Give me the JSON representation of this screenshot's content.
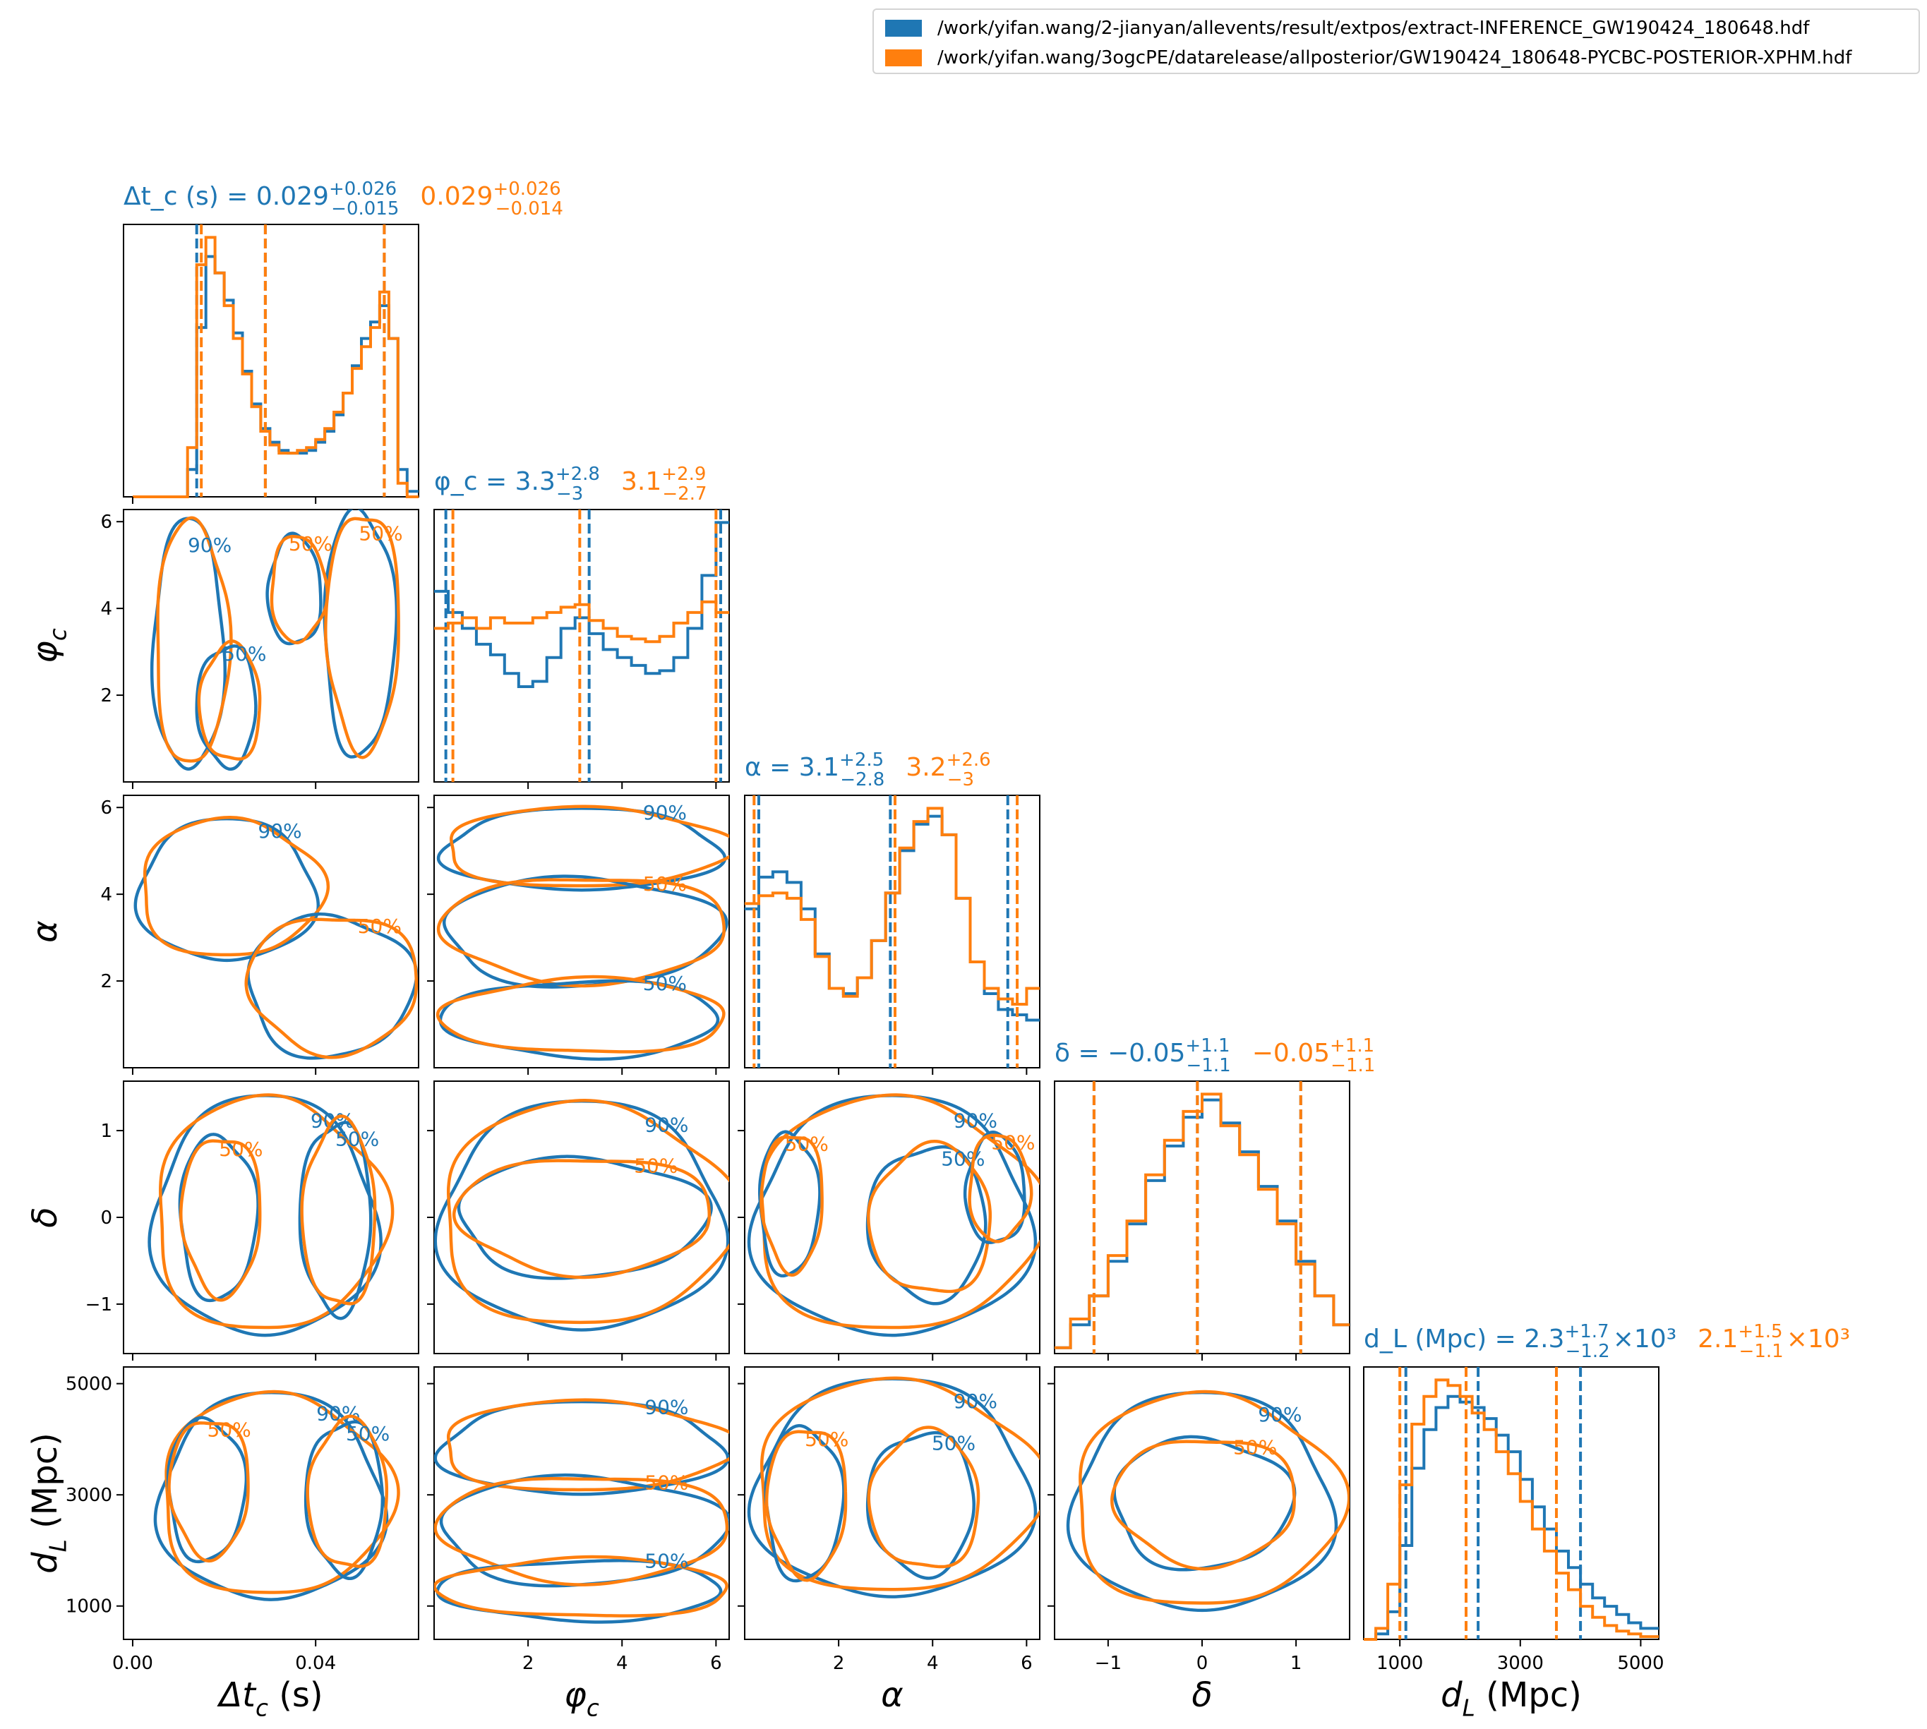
{
  "legend": {
    "entries": [
      {
        "label": "/work/yifan.wang/2-jianyan/allevents/result/extpos/extract-INFERENCE_GW190424_180648.hdf",
        "color": "#1f77b4"
      },
      {
        "label": "/work/yifan.wang/3ogcPE/datarelease/allposterior/GW190424_180648-PYCBC-POSTERIOR-XPHM.hdf",
        "color": "#ff7f0e"
      }
    ]
  },
  "colors": {
    "series_a": "#1f77b4",
    "series_b": "#ff7f0e"
  },
  "chart_data": {
    "type": "corner",
    "params": [
      {
        "key": "dtc",
        "label": "Δt_c (s)",
        "range": [
          -0.002,
          0.0625
        ],
        "ticks": [
          0.0,
          0.04
        ],
        "tick_labels": [
          "0.00",
          "0.04"
        ],
        "title_a": {
          "name": "Δt_c (s) = ",
          "median": "0.029",
          "plus": "+0.026",
          "minus": "−0.015"
        },
        "title_b": {
          "median": "0.029",
          "plus": "+0.026",
          "minus": "−0.014"
        }
      },
      {
        "key": "phic",
        "label": "φ_c",
        "range": [
          0.0,
          6.28
        ],
        "ticks": [
          2,
          4,
          6
        ],
        "tick_labels": [
          "2",
          "4",
          "6"
        ],
        "title_a": {
          "name": "φ_c = ",
          "median": "3.3",
          "plus": "+2.8",
          "minus": "−3"
        },
        "title_b": {
          "median": "3.1",
          "plus": "+2.9",
          "minus": "−2.7"
        }
      },
      {
        "key": "alpha",
        "label": "α",
        "range": [
          0.0,
          6.28
        ],
        "ticks": [
          2,
          4,
          6
        ],
        "tick_labels": [
          "2",
          "4",
          "6"
        ],
        "title_a": {
          "name": "α = ",
          "median": "3.1",
          "plus": "+2.5",
          "minus": "−2.8"
        },
        "title_b": {
          "median": "3.2",
          "plus": "+2.6",
          "minus": "−3"
        }
      },
      {
        "key": "delta",
        "label": "δ",
        "range": [
          -1.57,
          1.57
        ],
        "ticks": [
          -1,
          0,
          1
        ],
        "tick_labels": [
          "−1",
          "0",
          "1"
        ],
        "title_a": {
          "name": "δ = ",
          "median": "−0.05",
          "plus": "+1.1",
          "minus": "−1.1"
        },
        "title_b": {
          "median": "−0.05",
          "plus": "+1.1",
          "minus": "−1.1"
        }
      },
      {
        "key": "dl",
        "label": "d_L (Mpc)",
        "range": [
          400,
          5300
        ],
        "ticks": [
          1000,
          3000,
          5000
        ],
        "tick_labels": [
          "1000",
          "3000",
          "5000"
        ],
        "title_a": {
          "name": "d_L (Mpc) = ",
          "median": "2.3",
          "plus": "+1.7",
          "minus": "−1.2",
          "suffix": "×10³"
        },
        "title_b": {
          "median": "2.1",
          "plus": "+1.5",
          "minus": "−1.1",
          "suffix": "×10³"
        }
      }
    ],
    "y_ticks": {
      "phic": {
        "values": [
          2,
          4,
          6
        ],
        "labels": [
          "2",
          "4",
          "6"
        ]
      },
      "alpha": {
        "values": [
          2,
          4,
          6
        ],
        "labels": [
          "2",
          "4",
          "6"
        ]
      },
      "delta": {
        "values": [
          -1,
          0,
          1
        ],
        "labels": [
          "−1",
          "0",
          "1"
        ]
      },
      "dl": {
        "values": [
          1000,
          3000,
          5000
        ],
        "labels": [
          "1000",
          "3000",
          "5000"
        ]
      }
    },
    "marginals": {
      "dtc": {
        "a": {
          "x": [
            0.0,
            0.01,
            0.012,
            0.014,
            0.016,
            0.018,
            0.02,
            0.022,
            0.024,
            0.026,
            0.028,
            0.03,
            0.032,
            0.034,
            0.036,
            0.038,
            0.04,
            0.042,
            0.044,
            0.046,
            0.048,
            0.05,
            0.052,
            0.054,
            0.056,
            0.058,
            0.06,
            0.0625
          ],
          "y": [
            0.0,
            0.0,
            0.1,
            0.62,
            0.88,
            0.82,
            0.72,
            0.6,
            0.46,
            0.34,
            0.25,
            0.2,
            0.17,
            0.16,
            0.16,
            0.17,
            0.2,
            0.24,
            0.3,
            0.38,
            0.48,
            0.58,
            0.64,
            0.7,
            0.58,
            0.1,
            0.02,
            0.0
          ],
          "q": [
            0.014,
            0.029,
            0.055
          ]
        },
        "b": {
          "x": [
            0.0,
            0.01,
            0.012,
            0.014,
            0.016,
            0.018,
            0.02,
            0.022,
            0.024,
            0.026,
            0.028,
            0.03,
            0.032,
            0.034,
            0.036,
            0.038,
            0.04,
            0.042,
            0.044,
            0.046,
            0.048,
            0.05,
            0.052,
            0.054,
            0.056,
            0.058,
            0.06,
            0.0625
          ],
          "y": [
            0.0,
            0.0,
            0.18,
            0.85,
            0.95,
            0.82,
            0.7,
            0.58,
            0.45,
            0.33,
            0.24,
            0.19,
            0.16,
            0.16,
            0.17,
            0.18,
            0.21,
            0.25,
            0.31,
            0.38,
            0.47,
            0.55,
            0.62,
            0.75,
            0.58,
            0.05,
            0.0,
            0.0
          ],
          "q": [
            0.015,
            0.029,
            0.055
          ]
        }
      },
      "phic": {
        "a": {
          "x": [
            0.0,
            0.3,
            0.6,
            0.9,
            1.2,
            1.5,
            1.8,
            2.1,
            2.4,
            2.7,
            3.0,
            3.3,
            3.6,
            3.9,
            4.2,
            4.5,
            4.8,
            5.1,
            5.4,
            5.7,
            6.0,
            6.28
          ],
          "y": [
            0.72,
            0.64,
            0.58,
            0.52,
            0.48,
            0.41,
            0.36,
            0.38,
            0.47,
            0.58,
            0.62,
            0.56,
            0.5,
            0.47,
            0.44,
            0.41,
            0.42,
            0.47,
            0.58,
            0.78,
            0.98,
            0.85
          ],
          "q": [
            0.25,
            3.3,
            6.1
          ]
        },
        "b": {
          "x": [
            0.0,
            0.3,
            0.6,
            0.9,
            1.2,
            1.5,
            1.8,
            2.1,
            2.4,
            2.7,
            3.0,
            3.3,
            3.6,
            3.9,
            4.2,
            4.5,
            4.8,
            5.1,
            5.4,
            5.7,
            6.0,
            6.28
          ],
          "y": [
            0.58,
            0.6,
            0.62,
            0.58,
            0.62,
            0.6,
            0.6,
            0.62,
            0.64,
            0.66,
            0.67,
            0.61,
            0.58,
            0.55,
            0.54,
            0.53,
            0.55,
            0.6,
            0.64,
            0.68,
            0.64,
            0.62
          ],
          "q": [
            0.4,
            3.1,
            6.0
          ]
        }
      },
      "alpha": {
        "a": {
          "x": [
            0.0,
            0.3,
            0.6,
            0.9,
            1.2,
            1.5,
            1.8,
            2.1,
            2.4,
            2.7,
            3.0,
            3.3,
            3.6,
            3.9,
            4.2,
            4.5,
            4.8,
            5.1,
            5.4,
            5.7,
            6.0,
            6.28
          ],
          "y": [
            0.6,
            0.72,
            0.74,
            0.7,
            0.6,
            0.43,
            0.3,
            0.28,
            0.34,
            0.48,
            0.66,
            0.82,
            0.92,
            0.95,
            0.88,
            0.64,
            0.4,
            0.28,
            0.22,
            0.2,
            0.18,
            0.2
          ],
          "q": [
            0.3,
            3.1,
            5.6
          ]
        },
        "b": {
          "x": [
            0.0,
            0.3,
            0.6,
            0.9,
            1.2,
            1.5,
            1.8,
            2.1,
            2.4,
            2.7,
            3.0,
            3.3,
            3.6,
            3.9,
            4.2,
            4.5,
            4.8,
            5.1,
            5.4,
            5.7,
            6.0,
            6.28
          ],
          "y": [
            0.62,
            0.65,
            0.66,
            0.64,
            0.56,
            0.42,
            0.3,
            0.27,
            0.34,
            0.48,
            0.66,
            0.83,
            0.93,
            0.98,
            0.88,
            0.64,
            0.4,
            0.3,
            0.26,
            0.24,
            0.3,
            0.34
          ],
          "q": [
            0.2,
            3.2,
            5.8
          ]
        }
      },
      "delta": {
        "a": {
          "x": [
            -1.57,
            -1.4,
            -1.2,
            -1.0,
            -0.8,
            -0.6,
            -0.4,
            -0.2,
            0.0,
            0.2,
            0.4,
            0.6,
            0.8,
            1.0,
            1.2,
            1.4,
            1.57
          ],
          "y": [
            0.02,
            0.1,
            0.2,
            0.32,
            0.45,
            0.6,
            0.72,
            0.82,
            0.88,
            0.8,
            0.7,
            0.58,
            0.46,
            0.32,
            0.2,
            0.1,
            0.02
          ],
          "q": [
            -1.15,
            -0.05,
            1.05
          ]
        },
        "b": {
          "x": [
            -1.57,
            -1.4,
            -1.2,
            -1.0,
            -0.8,
            -0.6,
            -0.4,
            -0.2,
            0.0,
            0.2,
            0.4,
            0.6,
            0.8,
            1.0,
            1.2,
            1.4,
            1.57
          ],
          "y": [
            0.02,
            0.12,
            0.2,
            0.34,
            0.46,
            0.62,
            0.74,
            0.84,
            0.9,
            0.79,
            0.69,
            0.57,
            0.45,
            0.31,
            0.2,
            0.1,
            0.02
          ],
          "q": [
            -1.15,
            -0.05,
            1.05
          ]
        }
      },
      "dl": {
        "a": {
          "x": [
            400,
            600,
            800,
            1000,
            1200,
            1400,
            1600,
            1800,
            2000,
            2200,
            2400,
            2600,
            2800,
            3000,
            3200,
            3400,
            3600,
            3800,
            4000,
            4200,
            4400,
            4600,
            4800,
            5000,
            5300
          ],
          "y": [
            0.0,
            0.02,
            0.1,
            0.34,
            0.62,
            0.76,
            0.84,
            0.88,
            0.86,
            0.84,
            0.8,
            0.74,
            0.68,
            0.58,
            0.48,
            0.4,
            0.32,
            0.26,
            0.2,
            0.15,
            0.12,
            0.09,
            0.06,
            0.04,
            0.02
          ],
          "q": [
            1100,
            2300,
            4000
          ]
        },
        "b": {
          "x": [
            400,
            600,
            800,
            1000,
            1200,
            1400,
            1600,
            1800,
            2000,
            2200,
            2400,
            2600,
            2800,
            3000,
            3200,
            3400,
            3600,
            3800,
            4000,
            4200,
            4400,
            4600,
            4800,
            5000,
            5300
          ],
          "y": [
            0.0,
            0.04,
            0.2,
            0.56,
            0.78,
            0.88,
            0.94,
            0.92,
            0.88,
            0.82,
            0.76,
            0.68,
            0.6,
            0.5,
            0.4,
            0.32,
            0.24,
            0.18,
            0.12,
            0.08,
            0.05,
            0.03,
            0.02,
            0.01,
            0.0
          ],
          "q": [
            1000,
            2100,
            3600
          ]
        }
      }
    },
    "contour_labels": [
      "50%",
      "90%"
    ]
  }
}
